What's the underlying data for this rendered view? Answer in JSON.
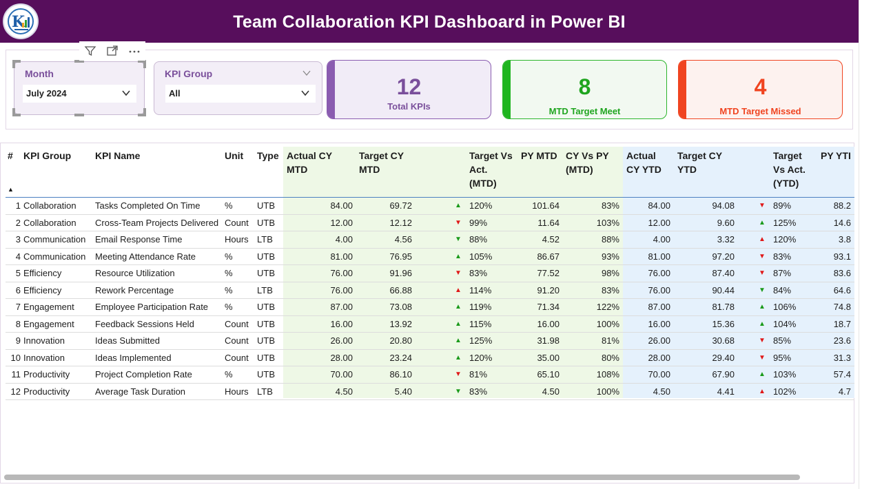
{
  "header": {
    "title": "Team Collaboration KPI Dashboard in Power BI"
  },
  "slicers": {
    "month": {
      "title": "Month",
      "value": "July 2024"
    },
    "kpi_group": {
      "title": "KPI Group",
      "value": "All"
    }
  },
  "cards": {
    "total": {
      "value": "12",
      "label": "Total KPIs"
    },
    "meet": {
      "value": "8",
      "label": "MTD Target Meet"
    },
    "missed": {
      "value": "4",
      "label": "MTD Target Missed"
    }
  },
  "table": {
    "headers": {
      "num": "#",
      "group": "KPI Group",
      "name": "KPI Name",
      "unit": "Unit",
      "type": "Type",
      "act_mtd_1": "Actual CY",
      "act_mtd_2": "MTD",
      "tgt_mtd_1": "Target CY",
      "tgt_mtd_2": "MTD",
      "tva_mtd_1": "Target Vs",
      "tva_mtd_2": "Act.",
      "tva_mtd_3": "(MTD)",
      "py_mtd": "PY MTD",
      "cvp_1": "CY Vs PY",
      "cvp_2": "(MTD)",
      "act_ytd_1": "Actual",
      "act_ytd_2": "CY YTD",
      "tgt_ytd_1": "Target CY",
      "tgt_ytd_2": "YTD",
      "tva_ytd_1": "Target",
      "tva_ytd_2": "Vs Act.",
      "tva_ytd_3": "(YTD)",
      "py_ytd": "PY YTI"
    },
    "rows": [
      {
        "n": "1",
        "group": "Collaboration",
        "name": "Tasks Completed On Time",
        "unit": "%",
        "type": "UTB",
        "act": "84.00",
        "tgt": "69.72",
        "mtd_arrow": "▲",
        "mtd_dir": "up",
        "tva": "120%",
        "py": "101.64",
        "cvp": "83%",
        "act_y": "84.00",
        "tgt_y": "94.08",
        "ytd_arrow": "▼",
        "ytd_dir": "down",
        "tva_y": "89%",
        "py_y": "88.2"
      },
      {
        "n": "2",
        "group": "Collaboration",
        "name": "Cross-Team Projects Delivered",
        "unit": "Count",
        "type": "UTB",
        "act": "12.00",
        "tgt": "12.12",
        "mtd_arrow": "▼",
        "mtd_dir": "down",
        "tva": "99%",
        "py": "11.64",
        "cvp": "103%",
        "act_y": "12.00",
        "tgt_y": "9.60",
        "ytd_arrow": "▲",
        "ytd_dir": "up",
        "tva_y": "125%",
        "py_y": "14.6"
      },
      {
        "n": "3",
        "group": "Communication",
        "name": "Email Response Time",
        "unit": "Hours",
        "type": "LTB",
        "act": "4.00",
        "tgt": "4.56",
        "mtd_arrow": "▼",
        "mtd_dir": "down-green",
        "tva": "88%",
        "py": "4.52",
        "cvp": "88%",
        "act_y": "4.00",
        "tgt_y": "3.32",
        "ytd_arrow": "▲",
        "ytd_dir": "up-red",
        "tva_y": "120%",
        "py_y": "3.8"
      },
      {
        "n": "4",
        "group": "Communication",
        "name": "Meeting Attendance Rate",
        "unit": "%",
        "type": "UTB",
        "act": "81.00",
        "tgt": "76.95",
        "mtd_arrow": "▲",
        "mtd_dir": "up",
        "tva": "105%",
        "py": "86.67",
        "cvp": "93%",
        "act_y": "81.00",
        "tgt_y": "97.20",
        "ytd_arrow": "▼",
        "ytd_dir": "down",
        "tva_y": "83%",
        "py_y": "93.1"
      },
      {
        "n": "5",
        "group": "Efficiency",
        "name": "Resource Utilization",
        "unit": "%",
        "type": "UTB",
        "act": "76.00",
        "tgt": "91.96",
        "mtd_arrow": "▼",
        "mtd_dir": "down",
        "tva": "83%",
        "py": "77.52",
        "cvp": "98%",
        "act_y": "76.00",
        "tgt_y": "87.40",
        "ytd_arrow": "▼",
        "ytd_dir": "down",
        "tva_y": "87%",
        "py_y": "83.6"
      },
      {
        "n": "6",
        "group": "Efficiency",
        "name": "Rework Percentage",
        "unit": "%",
        "type": "LTB",
        "act": "76.00",
        "tgt": "66.88",
        "mtd_arrow": "▲",
        "mtd_dir": "up-red",
        "tva": "114%",
        "py": "91.20",
        "cvp": "83%",
        "act_y": "76.00",
        "tgt_y": "90.44",
        "ytd_arrow": "▼",
        "ytd_dir": "down-green",
        "tva_y": "84%",
        "py_y": "64.6"
      },
      {
        "n": "7",
        "group": "Engagement",
        "name": "Employee Participation Rate",
        "unit": "%",
        "type": "UTB",
        "act": "87.00",
        "tgt": "73.08",
        "mtd_arrow": "▲",
        "mtd_dir": "up",
        "tva": "119%",
        "py": "71.34",
        "cvp": "122%",
        "act_y": "87.00",
        "tgt_y": "81.78",
        "ytd_arrow": "▲",
        "ytd_dir": "up",
        "tva_y": "106%",
        "py_y": "74.8"
      },
      {
        "n": "8",
        "group": "Engagement",
        "name": "Feedback Sessions Held",
        "unit": "Count",
        "type": "UTB",
        "act": "16.00",
        "tgt": "13.92",
        "mtd_arrow": "▲",
        "mtd_dir": "up",
        "tva": "115%",
        "py": "16.00",
        "cvp": "100%",
        "act_y": "16.00",
        "tgt_y": "15.36",
        "ytd_arrow": "▲",
        "ytd_dir": "up",
        "tva_y": "104%",
        "py_y": "18.7"
      },
      {
        "n": "9",
        "group": "Innovation",
        "name": "Ideas Submitted",
        "unit": "Count",
        "type": "UTB",
        "act": "26.00",
        "tgt": "20.80",
        "mtd_arrow": "▲",
        "mtd_dir": "up",
        "tva": "125%",
        "py": "31.98",
        "cvp": "81%",
        "act_y": "26.00",
        "tgt_y": "30.68",
        "ytd_arrow": "▼",
        "ytd_dir": "down",
        "tva_y": "85%",
        "py_y": "23.6"
      },
      {
        "n": "10",
        "group": "Innovation",
        "name": "Ideas Implemented",
        "unit": "Count",
        "type": "UTB",
        "act": "28.00",
        "tgt": "23.24",
        "mtd_arrow": "▲",
        "mtd_dir": "up",
        "tva": "120%",
        "py": "35.00",
        "cvp": "80%",
        "act_y": "28.00",
        "tgt_y": "29.40",
        "ytd_arrow": "▼",
        "ytd_dir": "down",
        "tva_y": "95%",
        "py_y": "31.3"
      },
      {
        "n": "11",
        "group": "Productivity",
        "name": "Project Completion Rate",
        "unit": "%",
        "type": "UTB",
        "act": "70.00",
        "tgt": "86.10",
        "mtd_arrow": "▼",
        "mtd_dir": "down",
        "tva": "81%",
        "py": "65.10",
        "cvp": "108%",
        "act_y": "70.00",
        "tgt_y": "67.90",
        "ytd_arrow": "▲",
        "ytd_dir": "up",
        "tva_y": "103%",
        "py_y": "57.4"
      },
      {
        "n": "12",
        "group": "Productivity",
        "name": "Average Task Duration",
        "unit": "Hours",
        "type": "LTB",
        "act": "4.50",
        "tgt": "5.40",
        "mtd_arrow": "▼",
        "mtd_dir": "down-green",
        "tva": "83%",
        "py": "4.50",
        "cvp": "100%",
        "act_y": "4.50",
        "tgt_y": "4.41",
        "ytd_arrow": "▲",
        "ytd_dir": "up-red",
        "tva_y": "102%",
        "py_y": "4.7"
      }
    ]
  }
}
